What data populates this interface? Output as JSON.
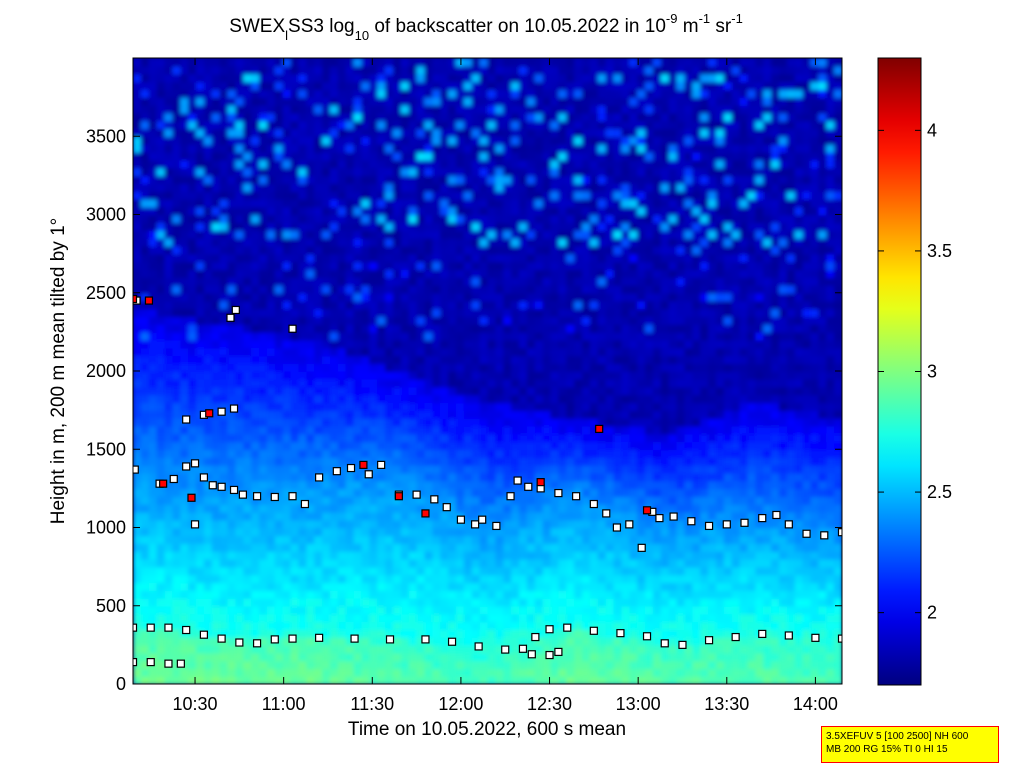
{
  "title": {
    "prefix": "SWEX",
    "sub1": "l",
    "mid": "SS3 log",
    "sub2": "10",
    "rest": " of backscatter on 10.05.2022 in 10",
    "sup1": "-9",
    "unit_m": " m",
    "sup2": "-1",
    "unit_sr": " sr",
    "sup3": "-1"
  },
  "param_box": {
    "line1": "3.5XEFUV 5 [100 2500] NH 600",
    "line2": "MB 200 RG 15% TI 0 HI 15"
  },
  "colorbar": {
    "range": [
      1.7,
      4.3
    ],
    "ticks": [
      "2",
      "2.5",
      "3",
      "3.5",
      "4"
    ],
    "colormap": "jet"
  },
  "chart_data": {
    "type": "heatmap",
    "title": "SWEX_l SS3 log10 of backscatter on 10.05.2022 in 10^-9 m^-1 sr^-1",
    "xlabel": "Time on 10.05.2022, 600 s mean",
    "ylabel": "Height in m, 200 m mean tilted by 1°",
    "x_unit": "hours (decimal)",
    "xlim": [
      10.15,
      14.15
    ],
    "ylim": [
      0,
      4000
    ],
    "x_ticks": [
      10.5,
      11.0,
      11.5,
      12.0,
      12.5,
      13.0,
      13.5,
      14.0
    ],
    "x_tick_labels": [
      "10:30",
      "11:00",
      "11:30",
      "12:00",
      "12:30",
      "13:00",
      "13:30",
      "14:00"
    ],
    "y_ticks": [
      0,
      500,
      1000,
      1500,
      2000,
      2500,
      3000,
      3500
    ],
    "y_tick_labels": [
      "0",
      "500",
      "1000",
      "1500",
      "2000",
      "2500",
      "3000",
      "3500"
    ],
    "value_range": [
      1.7,
      4.3
    ],
    "grid": false,
    "backscatter_profile": {
      "description_of_field": "log10 backscatter decreasing with height",
      "x": [
        10.15,
        10.65,
        11.15,
        11.65,
        12.15,
        12.65,
        13.15,
        13.65,
        14.15
      ],
      "surface_value": [
        2.95,
        2.95,
        2.95,
        2.9,
        2.85,
        2.95,
        2.9,
        2.9,
        2.85
      ],
      "surface_layer_top_m": [
        360,
        290,
        280,
        280,
        230,
        340,
        240,
        310,
        290
      ],
      "bl_top_m": [
        1300,
        1250,
        1250,
        1300,
        1000,
        1200,
        1000,
        1050,
        960
      ],
      "diffuse_top_m": [
        2400,
        2300,
        2200,
        2000,
        1800,
        1700,
        1600,
        1800,
        1700
      ]
    },
    "series": [
      {
        "name": "",
        "marker": "square",
        "points": [
          [
            10.15,
            360
          ],
          [
            10.25,
            360
          ],
          [
            10.35,
            360
          ],
          [
            10.45,
            345
          ],
          [
            10.55,
            315
          ],
          [
            10.65,
            290
          ],
          [
            10.75,
            265
          ],
          [
            10.85,
            260
          ],
          [
            10.95,
            285
          ],
          [
            11.05,
            290
          ],
          [
            11.2,
            295
          ],
          [
            11.4,
            290
          ],
          [
            11.6,
            285
          ],
          [
            11.8,
            285
          ],
          [
            11.95,
            270
          ],
          [
            12.1,
            240
          ],
          [
            12.25,
            220
          ],
          [
            12.35,
            225
          ],
          [
            12.42,
            300
          ],
          [
            12.5,
            350
          ],
          [
            12.6,
            360
          ],
          [
            12.75,
            340
          ],
          [
            12.9,
            325
          ],
          [
            13.05,
            305
          ],
          [
            13.15,
            260
          ],
          [
            13.25,
            250
          ],
          [
            13.4,
            280
          ],
          [
            13.55,
            300
          ],
          [
            13.7,
            320
          ],
          [
            13.85,
            310
          ],
          [
            14.0,
            295
          ],
          [
            14.15,
            290
          ],
          [
            10.15,
            140
          ],
          [
            10.25,
            140
          ],
          [
            10.35,
            130
          ],
          [
            10.42,
            130
          ],
          [
            12.4,
            190
          ],
          [
            12.5,
            185
          ],
          [
            12.55,
            205
          ],
          [
            10.16,
            1370
          ],
          [
            10.3,
            1280
          ],
          [
            10.38,
            1310
          ],
          [
            10.45,
            1390
          ],
          [
            10.5,
            1410
          ],
          [
            10.55,
            1320
          ],
          [
            10.6,
            1270
          ],
          [
            10.65,
            1260
          ],
          [
            10.72,
            1240
          ],
          [
            10.77,
            1210
          ],
          [
            10.85,
            1200
          ],
          [
            10.95,
            1195
          ],
          [
            11.05,
            1200
          ],
          [
            11.12,
            1150
          ],
          [
            11.2,
            1320
          ],
          [
            11.3,
            1360
          ],
          [
            11.38,
            1380
          ],
          [
            11.48,
            1340
          ],
          [
            11.55,
            1400
          ],
          [
            11.65,
            1210
          ],
          [
            11.75,
            1210
          ],
          [
            11.85,
            1180
          ],
          [
            11.92,
            1130
          ],
          [
            12.0,
            1050
          ],
          [
            12.08,
            1020
          ],
          [
            12.12,
            1050
          ],
          [
            12.2,
            1010
          ],
          [
            12.28,
            1200
          ],
          [
            12.32,
            1300
          ],
          [
            12.38,
            1260
          ],
          [
            12.45,
            1250
          ],
          [
            12.55,
            1220
          ],
          [
            12.65,
            1200
          ],
          [
            12.75,
            1150
          ],
          [
            12.82,
            1090
          ],
          [
            12.88,
            1000
          ],
          [
            12.95,
            1020
          ],
          [
            13.02,
            870
          ],
          [
            13.08,
            1100
          ],
          [
            13.12,
            1060
          ],
          [
            13.2,
            1070
          ],
          [
            13.3,
            1040
          ],
          [
            13.4,
            1010
          ],
          [
            13.5,
            1020
          ],
          [
            13.6,
            1030
          ],
          [
            13.7,
            1060
          ],
          [
            13.78,
            1080
          ],
          [
            13.85,
            1020
          ],
          [
            13.95,
            960
          ],
          [
            14.05,
            950
          ],
          [
            14.15,
            970
          ],
          [
            10.45,
            1690
          ],
          [
            10.55,
            1720
          ],
          [
            10.65,
            1740
          ],
          [
            10.72,
            1760
          ],
          [
            10.7,
            2340
          ],
          [
            10.73,
            2390
          ],
          [
            10.17,
            2450
          ],
          [
            10.5,
            1020
          ],
          [
            11.05,
            2270
          ]
        ]
      },
      {
        "name": "",
        "marker": "square-red",
        "points": [
          [
            10.15,
            2460
          ],
          [
            10.24,
            2450
          ],
          [
            10.32,
            1280
          ],
          [
            10.48,
            1190
          ],
          [
            10.58,
            1730
          ],
          [
            11.65,
            1200
          ],
          [
            11.8,
            1090
          ],
          [
            12.45,
            1290
          ],
          [
            12.78,
            1630
          ],
          [
            13.05,
            1110
          ],
          [
            11.45,
            1400
          ]
        ]
      }
    ]
  }
}
